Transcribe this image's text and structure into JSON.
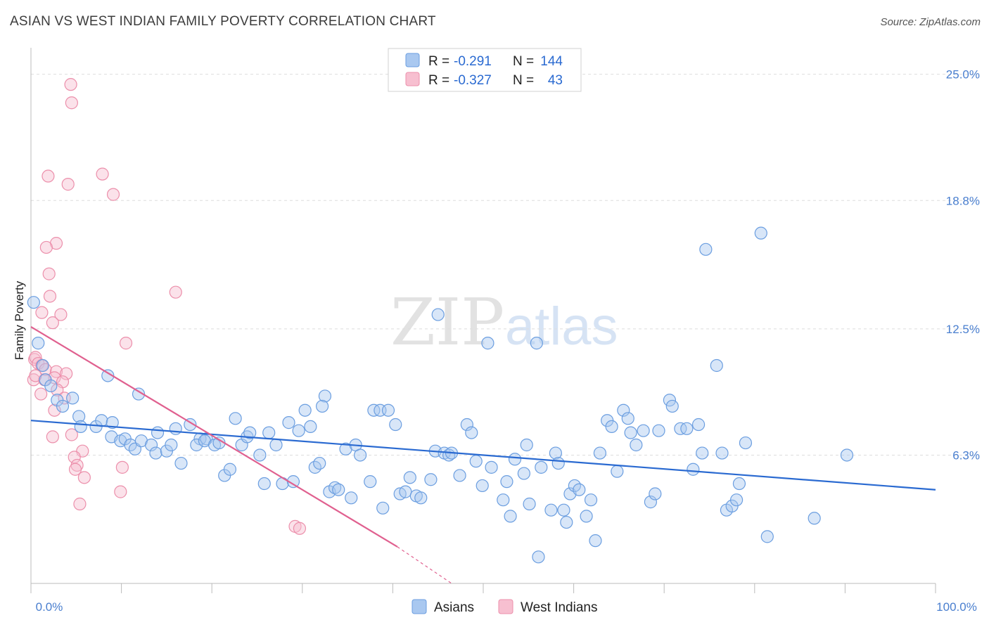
{
  "title": "ASIAN VS WEST INDIAN FAMILY POVERTY CORRELATION CHART",
  "source": "Source: ZipAtlas.com",
  "watermark": {
    "zip": "ZIP",
    "atlas": "atlas"
  },
  "colors": {
    "asian_fill": "#a9c8f0",
    "asian_stroke": "#6b9ee0",
    "asian_line": "#2a6ad1",
    "wi_fill": "#f7bfd0",
    "wi_stroke": "#ec8fab",
    "wi_line": "#e0608f",
    "grid": "#dddddd",
    "axis_text": "#4a7fcf"
  },
  "legend": {
    "rows": [
      {
        "r_label": "R =",
        "r_value": "-0.291",
        "n_label": "N =",
        "n_value": "144"
      },
      {
        "r_label": "R =",
        "r_value": "-0.327",
        "n_label": "N =",
        "n_value": "43"
      }
    ]
  },
  "bottom_legend": {
    "asians": "Asians",
    "west_indians": "West Indians"
  },
  "chart_data": {
    "type": "scatter",
    "xlabel": "",
    "ylabel": "Family Poverty",
    "xlim": [
      0,
      100
    ],
    "ylim": [
      0,
      26.3
    ],
    "x_tick_labels": [
      "0.0%",
      "100.0%"
    ],
    "y_ticks": [
      {
        "value": 6.3,
        "label": "6.3%"
      },
      {
        "value": 12.5,
        "label": "12.5%"
      },
      {
        "value": 18.8,
        "label": "18.8%"
      },
      {
        "value": 25.0,
        "label": "25.0%"
      }
    ],
    "series": [
      {
        "name": "Asians",
        "r": -0.291,
        "n": 144,
        "trend": {
          "x0": 0,
          "y0": 8.0,
          "x1": 100,
          "y1": 4.6
        },
        "points": [
          [
            0.3,
            13.8
          ],
          [
            0.8,
            11.8
          ],
          [
            1.3,
            10.7
          ],
          [
            1.6,
            10.0
          ],
          [
            2.2,
            9.7
          ],
          [
            2.9,
            9.0
          ],
          [
            3.5,
            8.7
          ],
          [
            4.6,
            9.1
          ],
          [
            5.3,
            8.2
          ],
          [
            5.5,
            7.7
          ],
          [
            7.2,
            7.7
          ],
          [
            7.8,
            8.0
          ],
          [
            8.5,
            10.2
          ],
          [
            8.9,
            7.2
          ],
          [
            9.0,
            7.9
          ],
          [
            9.9,
            7.0
          ],
          [
            10.4,
            7.1
          ],
          [
            11.0,
            6.8
          ],
          [
            11.9,
            9.3
          ],
          [
            11.5,
            6.6
          ],
          [
            12.2,
            7.0
          ],
          [
            13.3,
            6.8
          ],
          [
            13.8,
            6.4
          ],
          [
            14.0,
            7.4
          ],
          [
            15.0,
            6.5
          ],
          [
            15.5,
            6.8
          ],
          [
            16.0,
            7.6
          ],
          [
            16.6,
            5.9
          ],
          [
            17.6,
            7.8
          ],
          [
            18.7,
            7.1
          ],
          [
            18.3,
            6.8
          ],
          [
            19.4,
            7.1
          ],
          [
            19.2,
            7.0
          ],
          [
            20.3,
            6.8
          ],
          [
            20.8,
            6.9
          ],
          [
            21.4,
            5.3
          ],
          [
            22.0,
            5.6
          ],
          [
            22.6,
            8.1
          ],
          [
            23.3,
            6.8
          ],
          [
            23.9,
            7.2
          ],
          [
            24.2,
            7.4
          ],
          [
            25.3,
            6.3
          ],
          [
            25.8,
            4.9
          ],
          [
            26.3,
            7.4
          ],
          [
            27.1,
            6.8
          ],
          [
            27.8,
            4.9
          ],
          [
            28.5,
            7.9
          ],
          [
            29.0,
            5.0
          ],
          [
            29.6,
            7.5
          ],
          [
            30.3,
            8.5
          ],
          [
            30.9,
            7.7
          ],
          [
            31.4,
            5.7
          ],
          [
            31.9,
            5.9
          ],
          [
            32.5,
            9.2
          ],
          [
            32.2,
            8.7
          ],
          [
            33.0,
            4.5
          ],
          [
            33.6,
            4.7
          ],
          [
            34.0,
            4.6
          ],
          [
            34.8,
            6.6
          ],
          [
            35.4,
            4.2
          ],
          [
            35.9,
            6.8
          ],
          [
            36.4,
            6.3
          ],
          [
            37.5,
            5.0
          ],
          [
            37.9,
            8.5
          ],
          [
            38.6,
            8.5
          ],
          [
            38.9,
            3.7
          ],
          [
            39.5,
            8.5
          ],
          [
            40.3,
            7.8
          ],
          [
            40.8,
            4.4
          ],
          [
            41.4,
            4.5
          ],
          [
            41.9,
            5.2
          ],
          [
            42.6,
            4.3
          ],
          [
            43.1,
            4.2
          ],
          [
            44.2,
            5.1
          ],
          [
            45.0,
            13.2
          ],
          [
            44.7,
            6.5
          ],
          [
            45.7,
            6.4
          ],
          [
            46.2,
            6.3
          ],
          [
            46.5,
            6.4
          ],
          [
            47.4,
            5.3
          ],
          [
            48.2,
            7.8
          ],
          [
            48.7,
            7.4
          ],
          [
            49.2,
            6.0
          ],
          [
            49.9,
            4.8
          ],
          [
            50.5,
            11.8
          ],
          [
            50.9,
            5.7
          ],
          [
            52.2,
            4.1
          ],
          [
            52.6,
            5.0
          ],
          [
            53.0,
            3.3
          ],
          [
            53.5,
            6.1
          ],
          [
            54.5,
            5.4
          ],
          [
            54.8,
            6.8
          ],
          [
            55.1,
            3.9
          ],
          [
            55.9,
            11.8
          ],
          [
            56.4,
            5.7
          ],
          [
            57.5,
            3.6
          ],
          [
            58.0,
            6.4
          ],
          [
            58.3,
            5.9
          ],
          [
            58.9,
            3.6
          ],
          [
            59.2,
            3.0
          ],
          [
            59.6,
            4.4
          ],
          [
            60.1,
            4.8
          ],
          [
            60.6,
            4.6
          ],
          [
            61.4,
            3.3
          ],
          [
            61.9,
            4.1
          ],
          [
            62.4,
            2.1
          ],
          [
            62.9,
            6.4
          ],
          [
            63.7,
            8.0
          ],
          [
            64.2,
            7.7
          ],
          [
            64.8,
            5.5
          ],
          [
            65.5,
            8.5
          ],
          [
            66.0,
            8.1
          ],
          [
            66.3,
            7.4
          ],
          [
            66.9,
            6.8
          ],
          [
            67.7,
            7.5
          ],
          [
            68.5,
            4.0
          ],
          [
            69.0,
            4.4
          ],
          [
            69.4,
            7.5
          ],
          [
            70.6,
            9.0
          ],
          [
            70.9,
            8.7
          ],
          [
            71.8,
            7.6
          ],
          [
            72.5,
            7.6
          ],
          [
            73.2,
            5.6
          ],
          [
            73.8,
            7.8
          ],
          [
            74.2,
            6.4
          ],
          [
            74.6,
            16.4
          ],
          [
            75.8,
            10.7
          ],
          [
            76.4,
            6.4
          ],
          [
            76.9,
            3.6
          ],
          [
            77.5,
            3.8
          ],
          [
            78.0,
            4.1
          ],
          [
            78.3,
            4.9
          ],
          [
            79.0,
            6.9
          ],
          [
            80.7,
            17.2
          ],
          [
            81.4,
            2.3
          ],
          [
            86.6,
            3.2
          ],
          [
            90.2,
            6.3
          ],
          [
            56.1,
            1.3
          ]
        ]
      },
      {
        "name": "West Indians",
        "r": -0.327,
        "n": 43,
        "trend": {
          "x0": 0,
          "y0": 12.6,
          "x1": 40.5,
          "y1": 1.8
        },
        "trend_dashed": {
          "x0": 40.5,
          "y0": 1.8,
          "x1": 46.5,
          "y1": 0.0
        },
        "points": [
          [
            4.4,
            24.5
          ],
          [
            4.5,
            23.6
          ],
          [
            1.9,
            20.0
          ],
          [
            4.1,
            19.6
          ],
          [
            7.9,
            20.1
          ],
          [
            9.1,
            19.1
          ],
          [
            2.8,
            16.7
          ],
          [
            1.7,
            16.5
          ],
          [
            2.0,
            15.2
          ],
          [
            16.0,
            14.3
          ],
          [
            2.1,
            14.1
          ],
          [
            1.2,
            13.3
          ],
          [
            3.3,
            13.2
          ],
          [
            2.4,
            12.8
          ],
          [
            10.5,
            11.8
          ],
          [
            0.4,
            11.0
          ],
          [
            0.5,
            11.1
          ],
          [
            0.8,
            10.8
          ],
          [
            1.2,
            10.7
          ],
          [
            1.6,
            10.5
          ],
          [
            2.8,
            10.4
          ],
          [
            3.9,
            10.3
          ],
          [
            2.6,
            10.1
          ],
          [
            0.3,
            10.0
          ],
          [
            1.5,
            10.0
          ],
          [
            3.5,
            9.9
          ],
          [
            2.9,
            9.5
          ],
          [
            1.1,
            9.3
          ],
          [
            3.7,
            9.1
          ],
          [
            2.6,
            8.5
          ],
          [
            2.4,
            7.2
          ],
          [
            4.5,
            7.3
          ],
          [
            5.7,
            6.5
          ],
          [
            4.8,
            6.2
          ],
          [
            5.1,
            5.8
          ],
          [
            4.9,
            5.6
          ],
          [
            5.9,
            5.2
          ],
          [
            10.1,
            5.7
          ],
          [
            9.9,
            4.5
          ],
          [
            5.4,
            3.9
          ],
          [
            29.2,
            2.8
          ],
          [
            29.7,
            2.7
          ],
          [
            0.5,
            10.2
          ]
        ]
      }
    ],
    "grid": true,
    "legend_position": "top-center"
  }
}
